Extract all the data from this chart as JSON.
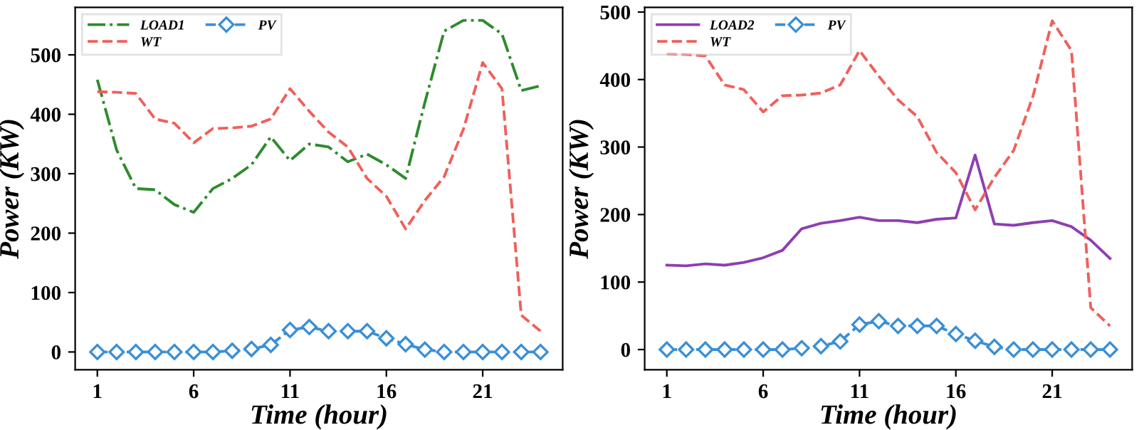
{
  "chart_data": [
    {
      "type": "line",
      "xlabel": "Time (hour)",
      "ylabel": "Power (KW)",
      "x": [
        1,
        2,
        3,
        4,
        5,
        6,
        7,
        8,
        9,
        10,
        11,
        12,
        13,
        14,
        15,
        16,
        17,
        18,
        19,
        20,
        21,
        22,
        23,
        24
      ],
      "xlim": [
        -0.15,
        25.15
      ],
      "xticks": [
        1,
        6,
        11,
        16,
        21
      ],
      "ylim": [
        -30,
        580
      ],
      "yticks": [
        0,
        100,
        200,
        300,
        400,
        500
      ],
      "grid": false,
      "legend": "top left",
      "series": [
        {
          "name": "LOAD1",
          "color": "#2e8b2e",
          "line_style": "dashdot",
          "marker": "none",
          "values": [
            458,
            340,
            275,
            273,
            248,
            235,
            275,
            292,
            315,
            362,
            322,
            350,
            345,
            320,
            333,
            315,
            292,
            420,
            540,
            558,
            558,
            535,
            440,
            448
          ]
        },
        {
          "name": "WT",
          "color": "#f0605a",
          "line_style": "dashed",
          "marker": "none",
          "values": [
            438,
            437,
            435,
            392,
            385,
            352,
            376,
            377,
            380,
            392,
            443,
            405,
            370,
            345,
            292,
            262,
            207,
            255,
            295,
            375,
            487,
            443,
            62,
            35
          ]
        },
        {
          "name": "PV",
          "color": "#3a8fd6",
          "line_style": "dashed",
          "marker": "diamond",
          "values": [
            0,
            0,
            0,
            0,
            0,
            0,
            0,
            2,
            5,
            12,
            37,
            42,
            35,
            35,
            35,
            23,
            13,
            4,
            0,
            0,
            0,
            0,
            0,
            0
          ]
        }
      ]
    },
    {
      "type": "line",
      "xlabel": "Time (hour)",
      "ylabel": "Power (KW)",
      "x": [
        1,
        2,
        3,
        4,
        5,
        6,
        7,
        8,
        9,
        10,
        11,
        12,
        13,
        14,
        15,
        16,
        17,
        18,
        19,
        20,
        21,
        22,
        23,
        24
      ],
      "xlim": [
        -0.15,
        25.15
      ],
      "xticks": [
        1,
        6,
        11,
        16,
        21
      ],
      "ylim": [
        -30,
        507
      ],
      "yticks": [
        0,
        100,
        200,
        300,
        400,
        500
      ],
      "grid": false,
      "legend": "top left",
      "series": [
        {
          "name": "LOAD2",
          "color": "#8e3fb0",
          "line_style": "solid",
          "marker": "none",
          "values": [
            125,
            124,
            127,
            125,
            129,
            136,
            147,
            179,
            187,
            191,
            196,
            191,
            191,
            188,
            193,
            195,
            288,
            186,
            184,
            188,
            191,
            182,
            162,
            135
          ]
        },
        {
          "name": "WT",
          "color": "#f0605a",
          "line_style": "dashed",
          "marker": "none",
          "values": [
            438,
            437,
            435,
            392,
            385,
            352,
            376,
            377,
            380,
            392,
            443,
            405,
            370,
            345,
            292,
            262,
            207,
            255,
            295,
            375,
            487,
            443,
            62,
            35
          ]
        },
        {
          "name": "PV",
          "color": "#3a8fd6",
          "line_style": "dashed",
          "marker": "diamond",
          "values": [
            0,
            0,
            0,
            0,
            0,
            0,
            0,
            2,
            5,
            12,
            37,
            42,
            35,
            35,
            35,
            23,
            13,
            4,
            0,
            0,
            0,
            0,
            0,
            0
          ]
        }
      ]
    }
  ]
}
